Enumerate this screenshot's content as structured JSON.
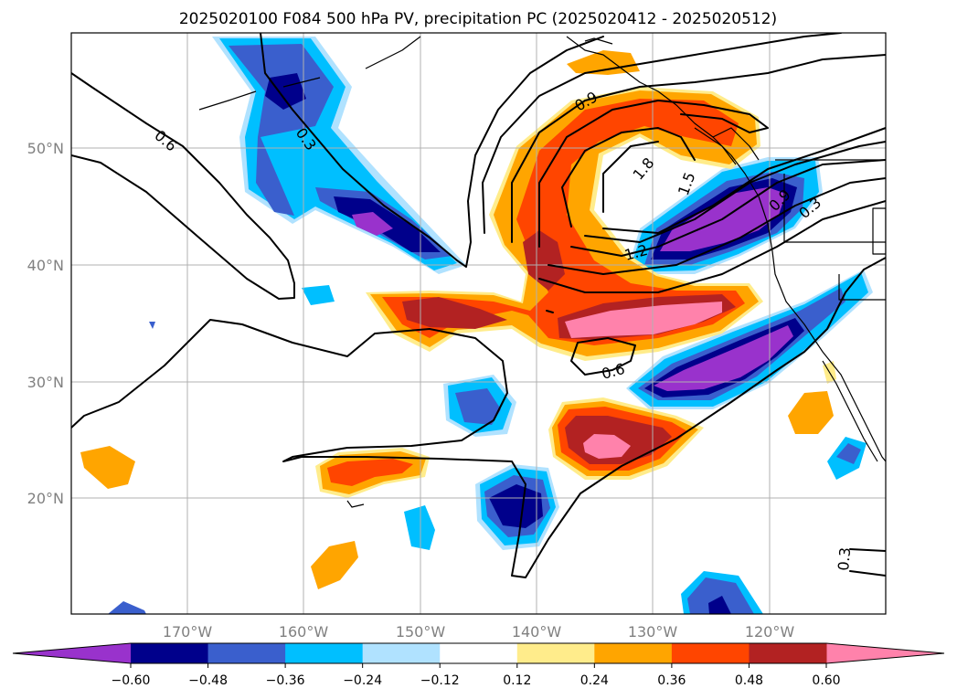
{
  "title": "2025020100 F084 500 hPa PV, precipitation PC (2025020412 - 2025020512)",
  "lon_labels": [
    "170°W",
    "160°W",
    "150°W",
    "140°W",
    "130°W",
    "120°W"
  ],
  "lat_labels": [
    "50°N",
    "40°N",
    "30°N",
    "20°N"
  ],
  "colorbar": {
    "ticks": [
      "−0.60",
      "−0.48",
      "−0.36",
      "−0.24",
      "−0.12",
      "0.12",
      "0.24",
      "0.36",
      "0.48",
      "0.60"
    ],
    "colors": [
      "#9932cc",
      "#00008b",
      "#3a5fcd",
      "#00bfff",
      "#b0e2ff",
      "#ffffff",
      "#ffec8b",
      "#ffa500",
      "#ff4500",
      "#b22222",
      "#ff82ab"
    ]
  },
  "contour_labels": [
    "0.6",
    "0.3",
    "0.9",
    "1.8",
    "1.5",
    "1.2",
    "0.9",
    "0.3",
    "0.6",
    "0.3"
  ],
  "colors": {
    "purple": "#9932cc",
    "navy": "#00008b",
    "royal_blue": "#3a5fcd",
    "sky_blue": "#00bfff",
    "light_blue": "#b0e2ff",
    "yellow": "#ffec8b",
    "orange": "#ffa500",
    "red_orange": "#ff4500",
    "firebrick": "#b22222",
    "pink": "#ff82ab"
  }
}
